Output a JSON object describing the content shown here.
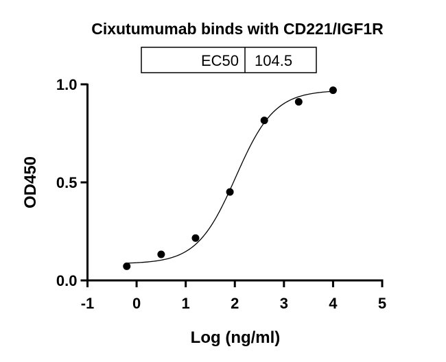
{
  "chart_data": {
    "type": "scatter",
    "title": "Cixutumumab binds with CD221/IGF1R",
    "xlabel": "Log (ng/ml)",
    "ylabel": "OD450",
    "xlim": [
      -1,
      5
    ],
    "ylim": [
      0,
      1.0
    ],
    "x_ticks": [
      "-1",
      "0",
      "1",
      "2",
      "3",
      "4",
      "5"
    ],
    "y_ticks": [
      "0.0",
      "0.5",
      "1.0"
    ],
    "grid": false,
    "fit": "sigmoidal dose-response curve",
    "results_table": {
      "label": "EC50",
      "value": "104.5"
    },
    "points": [
      {
        "x": -0.2,
        "y": 0.072
      },
      {
        "x": 0.5,
        "y": 0.133
      },
      {
        "x": 1.2,
        "y": 0.216
      },
      {
        "x": 1.9,
        "y": 0.451
      },
      {
        "x": 2.6,
        "y": 0.816
      },
      {
        "x": 3.3,
        "y": 0.911
      },
      {
        "x": 4.0,
        "y": 0.97
      }
    ],
    "colors": {
      "points": "#000000",
      "curve": "#000000"
    }
  }
}
